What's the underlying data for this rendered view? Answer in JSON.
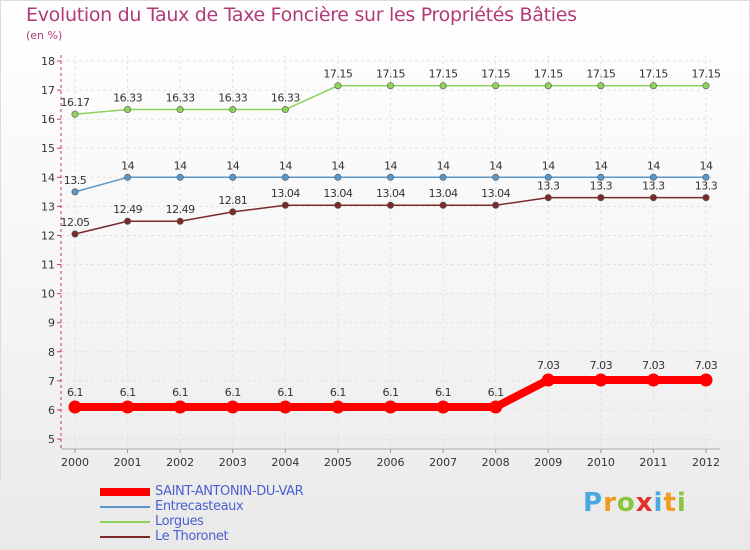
{
  "title": "Evolution du Taux de Taxe Foncière sur les Propriétés Bâties",
  "subtitle": "(en %)",
  "chart_data": {
    "type": "line",
    "title": "Evolution du Taux de Taxe Foncière sur les Propriétés Bâties",
    "ylabel": "(en %)",
    "xlabel": "",
    "ylim": [
      5,
      18
    ],
    "yticks": [
      "5",
      "6",
      "7",
      "8",
      "9",
      "10",
      "11",
      "12",
      "13",
      "14",
      "15",
      "16",
      "17",
      "18"
    ],
    "categories": [
      "2000",
      "2001",
      "2002",
      "2003",
      "2004",
      "2005",
      "2006",
      "2007",
      "2008",
      "2009",
      "2010",
      "2011",
      "2012"
    ],
    "series": [
      {
        "name": "Lorgues",
        "color": "#8fd25a",
        "values": [
          16.17,
          16.33,
          16.33,
          16.33,
          16.33,
          17.15,
          17.15,
          17.15,
          17.15,
          17.15,
          17.15,
          17.15,
          17.15
        ],
        "labels": [
          "16.17",
          "16.33",
          "16.33",
          "16.33",
          "16.33",
          "17.15",
          "17.15",
          "17.15",
          "17.15",
          "17.15",
          "17.15",
          "17.15",
          "17.15"
        ]
      },
      {
        "name": "Entrecasteaux",
        "color": "#5a96c8",
        "values": [
          13.5,
          14,
          14,
          14,
          14,
          14,
          14,
          14,
          14,
          14,
          14,
          14,
          14
        ],
        "labels": [
          "13.5",
          "14",
          "14",
          "14",
          "14",
          "14",
          "14",
          "14",
          "14",
          "14",
          "14",
          "14",
          "14"
        ]
      },
      {
        "name": "Le Thoronet",
        "color": "#7a2a2a",
        "values": [
          12.05,
          12.49,
          12.49,
          12.81,
          13.04,
          13.04,
          13.04,
          13.04,
          13.04,
          13.3,
          13.3,
          13.3,
          13.3
        ],
        "labels": [
          "12.05",
          "12.49",
          "12.49",
          "12.81",
          "13.04",
          "13.04",
          "13.04",
          "13.04",
          "13.04",
          "13.3",
          "13.3",
          "13.3",
          "13.3"
        ]
      },
      {
        "name": "SAINT-ANTONIN-DU-VAR",
        "color": "#ff0000",
        "values": [
          6.1,
          6.1,
          6.1,
          6.1,
          6.1,
          6.1,
          6.1,
          6.1,
          6.1,
          7.03,
          7.03,
          7.03,
          7.03
        ],
        "labels": [
          "6.1",
          "6.1",
          "6.1",
          "6.1",
          "6.1",
          "6.1",
          "6.1",
          "6.1",
          "6.1",
          "7.03",
          "7.03",
          "7.03",
          "7.03"
        ]
      }
    ],
    "legend": [
      {
        "name": "SAINT-ANTONIN-DU-VAR",
        "color": "#ff0000"
      },
      {
        "name": "Entrecasteaux",
        "color": "#5a96c8"
      },
      {
        "name": "Lorgues",
        "color": "#8fd25a"
      },
      {
        "name": "Le Thoronet",
        "color": "#7a2a2a"
      }
    ]
  },
  "logo": {
    "letters": [
      "P",
      "r",
      "o",
      "x",
      "i",
      "t",
      "i"
    ],
    "colors": [
      "#4aa8e0",
      "#f39a1e",
      "#8cc63f",
      "#e3312d",
      "#4aa8e0",
      "#f39a1e",
      "#8cc63f"
    ]
  }
}
